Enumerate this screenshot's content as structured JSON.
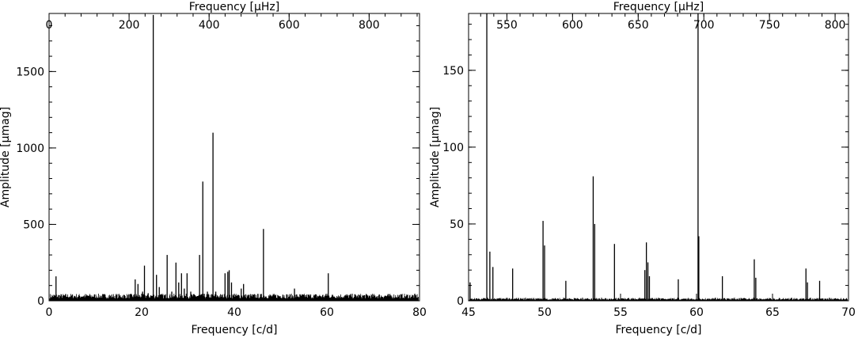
{
  "chart_data": [
    {
      "type": "line",
      "xlabel": "Frequency [c/d]",
      "ylabel": "Amplitude [μmag]",
      "top_xlabel": "Frequency [μHz]",
      "xlim": [
        0,
        80
      ],
      "ylim": [
        0,
        1880
      ],
      "top_xlim": [
        0,
        925.9
      ],
      "xticks": [
        0,
        20,
        40,
        60,
        80
      ],
      "yticks": [
        0,
        500,
        1000,
        1500
      ],
      "top_xticks": [
        0,
        200,
        400,
        600,
        800
      ],
      "grid": false,
      "peaks": {
        "x": [
          1.5,
          6.5,
          18.6,
          19.2,
          20.2,
          20.6,
          21.4,
          22.5,
          23.2,
          23.8,
          24.4,
          25.5,
          26.5,
          27.4,
          28.0,
          28.6,
          29.2,
          29.8,
          30.6,
          32.5,
          33.2,
          34.2,
          35.4,
          36.0,
          38.0,
          38.6,
          38.9,
          39.4,
          41.5,
          42.0,
          46.3,
          50.5,
          53.0,
          60.3,
          64.0
        ],
        "y": [
          160,
          30,
          140,
          110,
          60,
          230,
          50,
          1870,
          170,
          90,
          30,
          300,
          60,
          250,
          120,
          180,
          80,
          180,
          60,
          300,
          780,
          60,
          1100,
          60,
          180,
          190,
          200,
          120,
          80,
          110,
          470,
          40,
          80,
          180,
          20
        ]
      }
    },
    {
      "type": "line",
      "xlabel": "Frequency [c/d]",
      "ylabel": "Amplitude [μmag]",
      "top_xlabel": "Frequency [μHz]",
      "xlim": [
        45,
        70
      ],
      "ylim": [
        0,
        187
      ],
      "top_xlim": [
        520.8,
        810.2
      ],
      "xticks": [
        45,
        50,
        55,
        60,
        65,
        70
      ],
      "yticks": [
        0,
        50,
        100,
        150
      ],
      "top_xticks": [
        550,
        600,
        650,
        700,
        750,
        800
      ],
      "grid": false,
      "peaks": {
        "x": [
          45.1,
          46.2,
          46.4,
          46.6,
          47.9,
          49.9,
          50.0,
          51.4,
          53.2,
          53.3,
          54.6,
          56.6,
          56.7,
          56.8,
          56.9,
          58.8,
          60.1,
          60.15,
          61.7,
          63.8,
          63.9,
          67.2,
          67.3,
          68.1
        ],
        "y": [
          12,
          187,
          32,
          22,
          21,
          52,
          36,
          13,
          81,
          50,
          37,
          20,
          38,
          25,
          16,
          14,
          187,
          42,
          16,
          27,
          15,
          21,
          12,
          13
        ]
      }
    }
  ]
}
